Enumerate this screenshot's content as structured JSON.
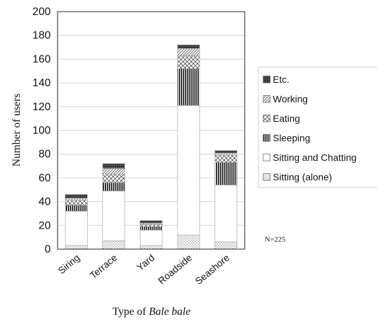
{
  "chart_data": {
    "type": "bar",
    "stacked": true,
    "categories": [
      "Siring",
      "Terrace",
      "Yard",
      "Roadside",
      "Seashore"
    ],
    "series": [
      {
        "name": "Sitting (alone)",
        "pattern": "dots",
        "values": [
          3,
          7,
          3,
          12,
          6
        ]
      },
      {
        "name": "Sitting and Chatting",
        "pattern": "white",
        "values": [
          29,
          42,
          13,
          109,
          48
        ]
      },
      {
        "name": "Sleeping",
        "pattern": "vertical-lines",
        "values": [
          5,
          7,
          3,
          31,
          19
        ]
      },
      {
        "name": "Eating",
        "pattern": "lattice",
        "values": [
          4,
          7,
          2,
          11,
          6
        ]
      },
      {
        "name": "Working",
        "pattern": "diagonal-lines",
        "values": [
          2,
          5,
          1,
          6,
          2
        ]
      },
      {
        "name": "Etc.",
        "pattern": "dark-grid",
        "values": [
          3,
          4,
          2,
          3,
          2
        ]
      }
    ],
    "xlabel_prefix": "Type of ",
    "xlabel_italic": "Bale bale",
    "ylabel": "Number of users",
    "ylim": [
      0,
      200
    ],
    "yticks": [
      0,
      20,
      40,
      60,
      80,
      100,
      120,
      140,
      160,
      180,
      200
    ],
    "grid": true,
    "legend_position": "right",
    "legend_order": [
      "Etc.",
      "Working",
      "Eating",
      "Sleeping",
      "Sitting and Chatting",
      "Sitting (alone)"
    ],
    "annotation": "N=225"
  }
}
